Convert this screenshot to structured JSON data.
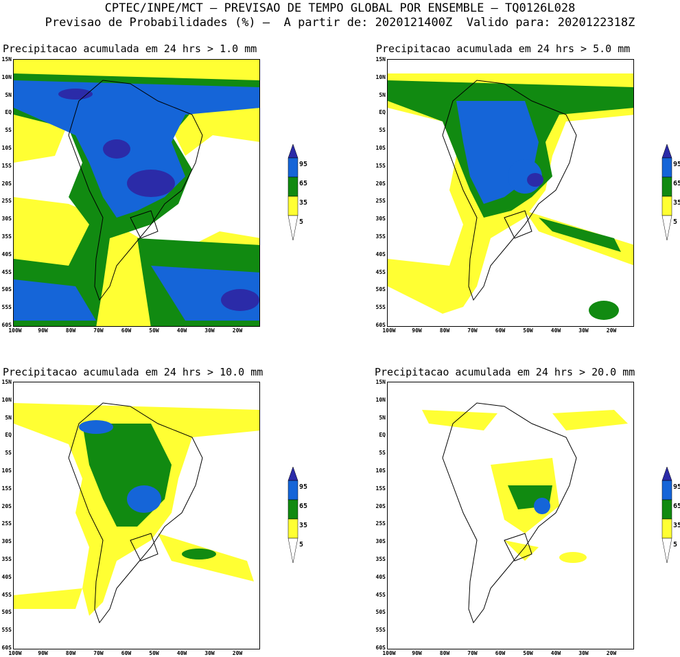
{
  "header": {
    "line1": "CPTEC/INPE/MCT – PREVISAO DE TEMPO GLOBAL POR ENSEMBLE – TQ0126L028",
    "line2": "Previsao de Probabilidades (%) –  A partir de: 2020121400Z  Valido para: 2020122318Z"
  },
  "panels": [
    {
      "title": "Precipitacao acumulada em 24 hrs > 1.0 mm"
    },
    {
      "title": "Precipitacao acumulada em 24 hrs > 5.0 mm"
    },
    {
      "title": "Precipitacao acumulada em 24 hrs > 10.0 mm"
    },
    {
      "title": "Precipitacao acumulada em 24 hrs > 20.0 mm"
    }
  ],
  "lat_labels": [
    "15N",
    "10N",
    "5N",
    "EQ",
    "5S",
    "10S",
    "15S",
    "20S",
    "25S",
    "30S",
    "35S",
    "40S",
    "45S",
    "50S",
    "55S",
    "60S"
  ],
  "lon_labels": [
    "100W",
    "90W",
    "80W",
    "70W",
    "60W",
    "50W",
    "40W",
    "30W",
    "20W"
  ],
  "legend": {
    "levels": [
      "95",
      "65",
      "35",
      "5"
    ],
    "colors": {
      "c95": "#2b2ba8",
      "c65": "#1565d8",
      "c35": "#118a11",
      "c5": "#ffff33"
    }
  }
}
